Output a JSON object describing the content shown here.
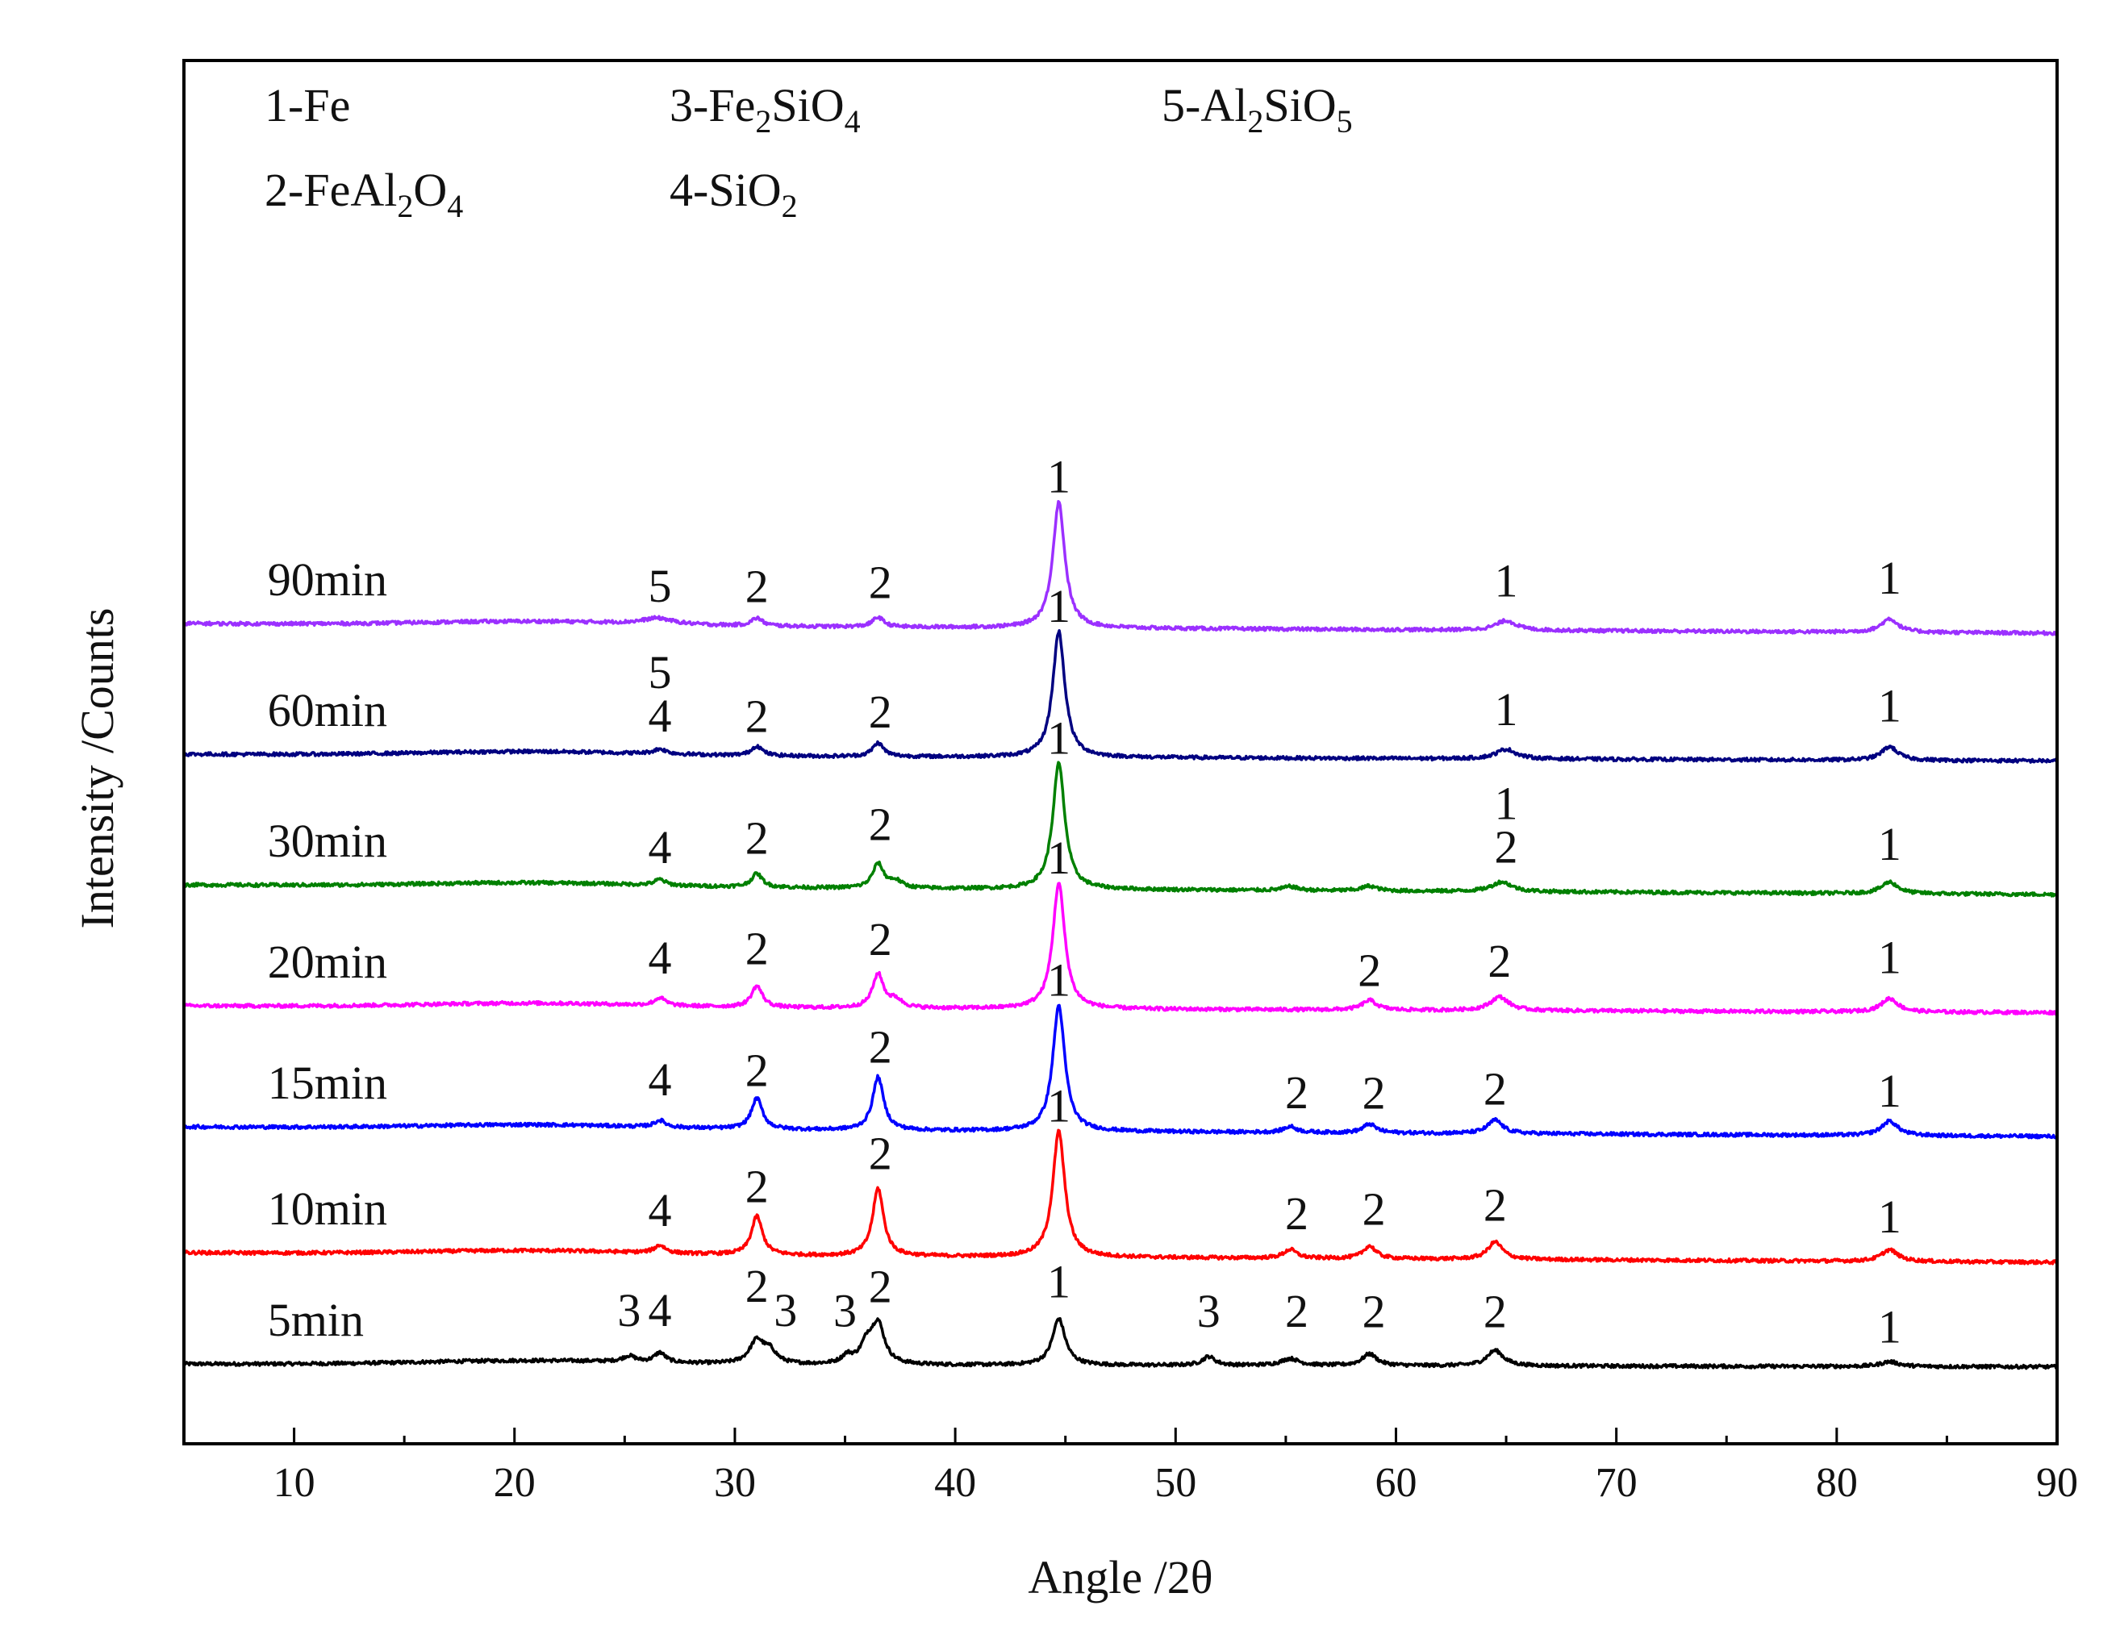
{
  "chart_data": {
    "type": "line",
    "title": "",
    "xlabel": "Angle /2θ",
    "ylabel": "Intensity /Counts",
    "xlim": [
      5,
      90
    ],
    "xticks": [
      10,
      20,
      30,
      40,
      50,
      60,
      70,
      80,
      90
    ],
    "yticks_shown": false,
    "legend": {
      "placement": "top-left",
      "entries": [
        {
          "num": "1",
          "parts": [
            {
              "t": "Fe"
            }
          ]
        },
        {
          "num": "2",
          "parts": [
            {
              "t": "FeAl"
            },
            {
              "t": "2",
              "sub": true
            },
            {
              "t": "O"
            },
            {
              "t": "4",
              "sub": true
            }
          ]
        },
        {
          "num": "3",
          "parts": [
            {
              "t": "Fe"
            },
            {
              "t": "2",
              "sub": true
            },
            {
              "t": "SiO"
            },
            {
              "t": "4",
              "sub": true
            }
          ]
        },
        {
          "num": "4",
          "parts": [
            {
              "t": "SiO"
            },
            {
              "t": "2",
              "sub": true
            }
          ]
        },
        {
          "num": "5",
          "parts": [
            {
              "t": "Al"
            },
            {
              "t": "2",
              "sub": true
            },
            {
              "t": "SiO"
            },
            {
              "t": "5",
              "sub": true
            }
          ]
        }
      ]
    },
    "series": [
      {
        "name": "5min",
        "color": "#000000",
        "baseline": 45,
        "end": 42,
        "peaks": [
          {
            "x": 25.2,
            "h": 6,
            "w": 0.35
          },
          {
            "x": 26.6,
            "h": 10,
            "w": 0.3
          },
          {
            "x": 31.0,
            "h": 24,
            "w": 0.4
          },
          {
            "x": 31.6,
            "h": 12,
            "w": 0.35
          },
          {
            "x": 35.1,
            "h": 8,
            "w": 0.3
          },
          {
            "x": 36.0,
            "h": 20,
            "w": 0.35
          },
          {
            "x": 36.5,
            "h": 40,
            "w": 0.35
          },
          {
            "x": 44.7,
            "h": 48,
            "w": 0.35
          },
          {
            "x": 51.5,
            "h": 9,
            "w": 0.35
          },
          {
            "x": 55.2,
            "h": 7,
            "w": 0.5
          },
          {
            "x": 58.8,
            "h": 12,
            "w": 0.4
          },
          {
            "x": 64.5,
            "h": 16,
            "w": 0.45
          },
          {
            "x": 82.4,
            "h": 5,
            "w": 0.5
          }
        ],
        "labels": [
          {
            "text": "3",
            "x": 25.2,
            "h": 30
          },
          {
            "text": "4",
            "x": 26.6,
            "h": 30
          },
          {
            "text": "2",
            "x": 31.0,
            "h": 55
          },
          {
            "text": "3",
            "x": 32.3,
            "h": 30
          },
          {
            "text": "3",
            "x": 35.0,
            "h": 30
          },
          {
            "text": "2",
            "x": 36.6,
            "h": 55
          },
          {
            "text": "1",
            "x": 44.7,
            "h": 60
          },
          {
            "text": "3",
            "x": 51.5,
            "h": 30
          },
          {
            "text": "2",
            "x": 55.5,
            "h": 30
          },
          {
            "text": "2",
            "x": 59.0,
            "h": 30
          },
          {
            "text": "2",
            "x": 64.5,
            "h": 30
          },
          {
            "text": "1",
            "x": 82.4,
            "h": 15
          }
        ]
      },
      {
        "name": "10min",
        "color": "#ff0000",
        "baseline": 160,
        "end": 150,
        "peaks": [
          {
            "x": 26.6,
            "h": 8,
            "w": 0.3
          },
          {
            "x": 31.0,
            "h": 40,
            "w": 0.3
          },
          {
            "x": 36.5,
            "h": 70,
            "w": 0.3
          },
          {
            "x": 44.7,
            "h": 130,
            "w": 0.33
          },
          {
            "x": 55.2,
            "h": 9,
            "w": 0.35
          },
          {
            "x": 58.8,
            "h": 13,
            "w": 0.35
          },
          {
            "x": 64.5,
            "h": 18,
            "w": 0.4
          },
          {
            "x": 82.4,
            "h": 12,
            "w": 0.45
          }
        ],
        "labels": [
          {
            "text": "4",
            "x": 26.6,
            "h": 20
          },
          {
            "text": "2",
            "x": 31.0,
            "h": 45
          },
          {
            "text": "2",
            "x": 36.6,
            "h": 80
          },
          {
            "text": "1",
            "x": 44.7,
            "h": 130
          },
          {
            "text": "2",
            "x": 55.5,
            "h": 20
          },
          {
            "text": "2",
            "x": 59.0,
            "h": 25
          },
          {
            "text": "2",
            "x": 64.5,
            "h": 30
          },
          {
            "text": "1",
            "x": 82.4,
            "h": 20
          }
        ]
      },
      {
        "name": "15min",
        "color": "#0000ff",
        "baseline": 290,
        "end": 280,
        "peaks": [
          {
            "x": 26.6,
            "h": 7,
            "w": 0.3
          },
          {
            "x": 31.0,
            "h": 32,
            "w": 0.3
          },
          {
            "x": 36.5,
            "h": 55,
            "w": 0.3
          },
          {
            "x": 44.7,
            "h": 130,
            "w": 0.33
          },
          {
            "x": 55.2,
            "h": 6,
            "w": 0.35
          },
          {
            "x": 58.8,
            "h": 9,
            "w": 0.35
          },
          {
            "x": 64.5,
            "h": 14,
            "w": 0.4
          },
          {
            "x": 82.4,
            "h": 15,
            "w": 0.45
          }
        ],
        "labels": [
          {
            "text": "4",
            "x": 26.6,
            "h": 25
          },
          {
            "text": "2",
            "x": 31.0,
            "h": 35
          },
          {
            "text": "2",
            "x": 36.6,
            "h": 60
          },
          {
            "text": "1",
            "x": 44.7,
            "h": 130
          },
          {
            "text": "2",
            "x": 55.5,
            "h": 15
          },
          {
            "text": "2",
            "x": 59.0,
            "h": 15
          },
          {
            "text": "2",
            "x": 64.5,
            "h": 20
          },
          {
            "text": "1",
            "x": 82.4,
            "h": 20
          }
        ]
      },
      {
        "name": "20min",
        "color": "#ff00ff",
        "baseline": 415,
        "end": 408,
        "peaks": [
          {
            "x": 26.6,
            "h": 8,
            "w": 0.3
          },
          {
            "x": 31.0,
            "h": 22,
            "w": 0.3
          },
          {
            "x": 36.5,
            "h": 35,
            "w": 0.3
          },
          {
            "x": 37.3,
            "h": 8,
            "w": 0.35
          },
          {
            "x": 44.7,
            "h": 130,
            "w": 0.33
          },
          {
            "x": 58.8,
            "h": 10,
            "w": 0.4
          },
          {
            "x": 64.7,
            "h": 14,
            "w": 0.5
          },
          {
            "x": 82.4,
            "h": 14,
            "w": 0.45
          }
        ],
        "labels": [
          {
            "text": "4",
            "x": 26.6,
            "h": 25
          },
          {
            "text": "2",
            "x": 31.0,
            "h": 35
          },
          {
            "text": "2",
            "x": 36.6,
            "h": 45
          },
          {
            "text": "1",
            "x": 44.7,
            "h": 130
          },
          {
            "text": "2",
            "x": 58.8,
            "h": 15
          },
          {
            "text": "2",
            "x": 64.7,
            "h": 25
          },
          {
            "text": "1",
            "x": 82.4,
            "h": 30
          }
        ]
      },
      {
        "name": "30min",
        "color": "#008000",
        "baseline": 540,
        "end": 530,
        "peaks": [
          {
            "x": 26.6,
            "h": 6,
            "w": 0.3
          },
          {
            "x": 31.0,
            "h": 14,
            "w": 0.3
          },
          {
            "x": 36.5,
            "h": 25,
            "w": 0.3
          },
          {
            "x": 37.3,
            "h": 7,
            "w": 0.35
          },
          {
            "x": 44.7,
            "h": 130,
            "w": 0.33
          },
          {
            "x": 55.2,
            "h": 4,
            "w": 0.4
          },
          {
            "x": 58.8,
            "h": 5,
            "w": 0.4
          },
          {
            "x": 64.8,
            "h": 10,
            "w": 0.55
          },
          {
            "x": 82.4,
            "h": 12,
            "w": 0.45
          }
        ],
        "labels": [
          {
            "text": "4",
            "x": 26.6,
            "h": 15
          },
          {
            "text": "2",
            "x": 31.0,
            "h": 25
          },
          {
            "text": "2",
            "x": 36.6,
            "h": 40
          },
          {
            "text": "1",
            "x": 44.7,
            "h": 130
          },
          {
            "text": "2",
            "x": 65.0,
            "h": 20
          },
          {
            "text": "1",
            "x": 65.0,
            "h": 65
          },
          {
            "text": "1",
            "x": 82.4,
            "h": 25
          }
        ]
      },
      {
        "name": "60min",
        "color": "#000080",
        "baseline": 675,
        "end": 668,
        "peaks": [
          {
            "x": 26.6,
            "h": 5,
            "w": 0.35
          },
          {
            "x": 31.0,
            "h": 10,
            "w": 0.3
          },
          {
            "x": 36.5,
            "h": 14,
            "w": 0.3
          },
          {
            "x": 44.7,
            "h": 130,
            "w": 0.33
          },
          {
            "x": 65.0,
            "h": 10,
            "w": 0.55
          },
          {
            "x": 82.4,
            "h": 14,
            "w": 0.45
          }
        ],
        "labels": [
          {
            "text": "4",
            "x": 26.6,
            "h": 15
          },
          {
            "text": "5",
            "x": 26.6,
            "h": 60
          },
          {
            "text": "2",
            "x": 31.0,
            "h": 15
          },
          {
            "text": "2",
            "x": 36.6,
            "h": 20
          },
          {
            "text": "1",
            "x": 44.7,
            "h": 130
          },
          {
            "text": "1",
            "x": 65.0,
            "h": 25
          },
          {
            "text": "1",
            "x": 82.4,
            "h": 30
          }
        ]
      },
      {
        "name": "90min",
        "color": "#9b30ff",
        "baseline": 810,
        "end": 800,
        "peaks": [
          {
            "x": 26.5,
            "h": 6,
            "w": 0.8
          },
          {
            "x": 31.0,
            "h": 8,
            "w": 0.3
          },
          {
            "x": 36.5,
            "h": 10,
            "w": 0.3
          },
          {
            "x": 44.7,
            "h": 130,
            "w": 0.33
          },
          {
            "x": 65.0,
            "h": 10,
            "w": 0.55
          },
          {
            "x": 82.4,
            "h": 14,
            "w": 0.45
          }
        ],
        "labels": [
          {
            "text": "5",
            "x": 26.6,
            "h": 15
          },
          {
            "text": "2",
            "x": 31.0,
            "h": 15
          },
          {
            "text": "2",
            "x": 36.6,
            "h": 20
          },
          {
            "text": "1",
            "x": 44.7,
            "h": 130
          },
          {
            "text": "1",
            "x": 65.0,
            "h": 25
          },
          {
            "text": "1",
            "x": 82.4,
            "h": 30
          }
        ]
      }
    ]
  }
}
